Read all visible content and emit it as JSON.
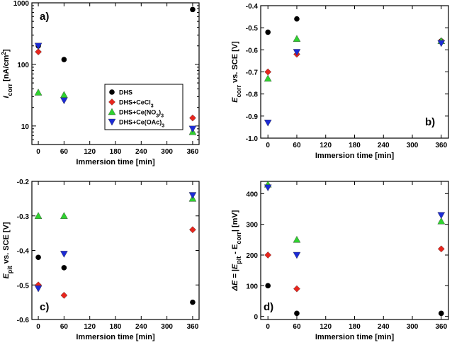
{
  "series_styles": [
    {
      "name": "DHS",
      "marker": "circle",
      "color": "#000000"
    },
    {
      "name": "DHS+CeCl3",
      "marker": "diamond",
      "color": "#e8251d"
    },
    {
      "name": "DHS+Ce(NO3)3",
      "marker": "triangle-up",
      "color": "#2fd22f"
    },
    {
      "name": "DHS+Ce(OAc)3",
      "marker": "triangle-down",
      "color": "#1c2bd6"
    }
  ],
  "legend": {
    "entries": [
      {
        "main": "DHS",
        "sub": "",
        "tail": ""
      },
      {
        "main": "DHS+CeCl",
        "sub": "3",
        "tail": ""
      },
      {
        "main": "DHS+Ce(NO",
        "sub": "3",
        "tail": ")",
        "sub2": "3"
      },
      {
        "main": "DHS+Ce(OAc)",
        "sub": "3",
        "tail": ""
      }
    ]
  },
  "chart_data": [
    {
      "type": "scatter",
      "panel_label": "a)",
      "title": "",
      "xlabel": "Immersion time [min]",
      "ylabel": {
        "main": "i",
        "sub": "corr",
        "rest": " [nA/cm",
        "sup": "2",
        "end": "]"
      },
      "yscale": "log",
      "xlim": [
        -15,
        375
      ],
      "ylim": [
        5,
        1000
      ],
      "xticks": [
        0,
        60,
        120,
        180,
        240,
        300,
        360
      ],
      "yticks": [
        10,
        100,
        1000
      ],
      "legend_position": "center",
      "series": [
        {
          "name": "DHS",
          "x": [
            0,
            60,
            360
          ],
          "y": [
            200,
            120,
            780
          ]
        },
        {
          "name": "DHS+CeCl3",
          "x": [
            0,
            360
          ],
          "y": [
            160,
            13.5
          ]
        },
        {
          "name": "DHS+Ce(NO3)3",
          "x": [
            0,
            60,
            360
          ],
          "y": [
            35,
            32,
            8
          ]
        },
        {
          "name": "DHS+Ce(OAc)3",
          "x": [
            0,
            60,
            360
          ],
          "y": [
            200,
            26,
            9
          ]
        }
      ]
    },
    {
      "type": "scatter",
      "panel_label": "b)",
      "xlabel": "Immersion time [min]",
      "ylabel": {
        "main": "E",
        "sub": "corr",
        "rest": " vs. SCE [V]",
        "sup": "",
        "end": ""
      },
      "yscale": "linear",
      "xlim": [
        -15,
        375
      ],
      "ylim": [
        -1.0,
        -0.4
      ],
      "xticks": [
        0,
        60,
        120,
        180,
        240,
        300,
        360
      ],
      "yticks": [
        -1.0,
        -0.9,
        -0.8,
        -0.7,
        -0.6,
        -0.5,
        -0.4
      ],
      "ytick_labels": [
        "-1.0",
        "-0.9",
        "-0.8",
        "-0.7",
        "-0.6",
        "-0.5",
        "-0.4"
      ],
      "series": [
        {
          "name": "DHS",
          "x": [
            0,
            60,
            360
          ],
          "y": [
            -0.52,
            -0.46,
            -0.56
          ]
        },
        {
          "name": "DHS+CeCl3",
          "x": [
            0,
            60,
            360
          ],
          "y": [
            -0.7,
            -0.62,
            -0.56
          ]
        },
        {
          "name": "DHS+Ce(NO3)3",
          "x": [
            0,
            60,
            360
          ],
          "y": [
            -0.73,
            -0.55,
            -0.56
          ]
        },
        {
          "name": "DHS+Ce(OAc)3",
          "x": [
            0,
            60,
            360
          ],
          "y": [
            -0.93,
            -0.61,
            -0.57
          ]
        }
      ]
    },
    {
      "type": "scatter",
      "panel_label": "c)",
      "xlabel": "Immersion time [min]",
      "ylabel": {
        "main": "E",
        "sub": "pit",
        "rest": " vs. SCE [V]",
        "sup": "",
        "end": ""
      },
      "yscale": "linear",
      "xlim": [
        -15,
        375
      ],
      "ylim": [
        -0.6,
        -0.2
      ],
      "xticks": [
        0,
        60,
        120,
        180,
        240,
        300,
        360
      ],
      "yticks": [
        -0.6,
        -0.5,
        -0.4,
        -0.3,
        -0.2
      ],
      "ytick_labels": [
        "-0.6",
        "-0.5",
        "-0.4",
        "-0.3",
        "-0.2"
      ],
      "series": [
        {
          "name": "DHS",
          "x": [
            0,
            60,
            360
          ],
          "y": [
            -0.42,
            -0.45,
            -0.55
          ]
        },
        {
          "name": "DHS+CeCl3",
          "x": [
            0,
            60,
            360
          ],
          "y": [
            -0.5,
            -0.53,
            -0.34
          ]
        },
        {
          "name": "DHS+Ce(NO3)3",
          "x": [
            0,
            60,
            360
          ],
          "y": [
            -0.3,
            -0.3,
            -0.25
          ]
        },
        {
          "name": "DHS+Ce(OAc)3",
          "x": [
            0,
            60,
            360
          ],
          "y": [
            -0.51,
            -0.41,
            -0.24
          ]
        }
      ]
    },
    {
      "type": "scatter",
      "panel_label": "d)",
      "xlabel": "Immersion time [min]",
      "ylabel": {
        "main": "ΔE = |E",
        "sub": "pit",
        "rest": " - E",
        "sub2": "corr",
        "end": "| [mV]"
      },
      "yscale": "linear",
      "xlim": [
        -15,
        375
      ],
      "ylim": [
        -10,
        440
      ],
      "xticks": [
        0,
        60,
        120,
        180,
        240,
        300,
        360
      ],
      "yticks": [
        0,
        100,
        200,
        300,
        400
      ],
      "ytick_labels": [
        "0",
        "100",
        "200",
        "300",
        "400"
      ],
      "series": [
        {
          "name": "DHS",
          "x": [
            0,
            60,
            360
          ],
          "y": [
            100,
            10,
            10
          ]
        },
        {
          "name": "DHS+CeCl3",
          "x": [
            0,
            60,
            360
          ],
          "y": [
            200,
            90,
            220
          ]
        },
        {
          "name": "DHS+Ce(NO3)3",
          "x": [
            0,
            60,
            360
          ],
          "y": [
            430,
            250,
            310
          ]
        },
        {
          "name": "DHS+Ce(OAc)3",
          "x": [
            0,
            60,
            360
          ],
          "y": [
            420,
            200,
            330
          ]
        }
      ]
    }
  ]
}
